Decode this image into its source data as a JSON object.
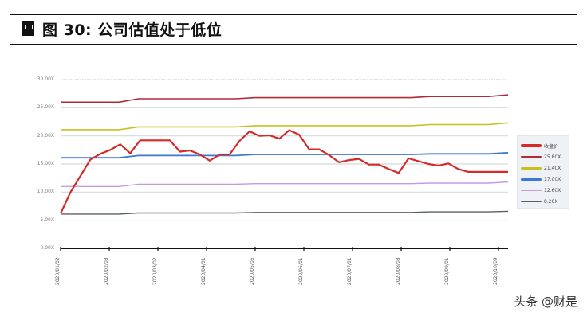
{
  "header": {
    "figure_label": "图 30:",
    "title": "公司估值处于低位"
  },
  "watermark": "头条 @财是",
  "chart_data": {
    "type": "line",
    "title": "图 30: 公司估值处于低位",
    "xlabel": "",
    "ylabel": "",
    "ylim": [
      0,
      30
    ],
    "grid": true,
    "legend_position": "right",
    "y_ticks": [
      "0.00X",
      "5.00X",
      "10.00X",
      "15.00X",
      "20.00X",
      "25.00X",
      "30.00X"
    ],
    "x_tick_labels": [
      "2020/01/02",
      "2020/02/03",
      "2020/03/02",
      "2020/04/01",
      "2020/05/06",
      "2020/06/01",
      "2020/07/01",
      "2020/08/03",
      "2020/09/01",
      "2020/10/09"
    ],
    "series": [
      {
        "name": "收盘价",
        "color": "#d42a2a",
        "width": 2.2,
        "x": [
          0,
          1,
          3,
          4,
          5,
          6,
          7,
          8,
          9,
          10,
          11,
          12,
          13,
          14,
          15,
          16,
          17,
          18,
          19,
          20,
          21,
          22,
          23,
          24,
          25,
          26,
          27,
          28,
          29,
          30,
          31,
          32,
          33,
          34,
          35,
          36,
          37,
          38,
          39,
          40,
          41,
          42,
          43,
          44,
          45
        ],
        "values": [
          6.2,
          10.0,
          15.8,
          16.8,
          17.5,
          18.5,
          16.9,
          19.2,
          19.2,
          19.2,
          19.2,
          17.2,
          17.4,
          16.7,
          15.6,
          16.7,
          16.7,
          19.1,
          20.8,
          20.0,
          20.1,
          19.5,
          21.0,
          20.2,
          17.6,
          17.6,
          16.6,
          15.3,
          15.7,
          15.9,
          14.9,
          14.9,
          14.1,
          13.4,
          16.0,
          15.5,
          15.0,
          14.7,
          15.1,
          14.1,
          13.6,
          13.6,
          13.6,
          13.6,
          13.6
        ]
      },
      {
        "name": "25.80X",
        "color": "#b02a3a",
        "width": 1.6,
        "values": [
          26.0,
          26.0,
          26.0,
          26.0,
          26.6,
          26.6,
          26.6,
          26.6,
          26.6,
          26.6,
          26.8,
          26.8,
          26.8,
          26.8,
          26.8,
          26.8,
          26.8,
          26.8,
          26.8,
          27.0,
          27.0,
          27.0,
          27.0,
          27.3
        ]
      },
      {
        "name": "21.40X",
        "color": "#c8c020",
        "width": 1.6,
        "values": [
          21.1,
          21.1,
          21.1,
          21.1,
          21.6,
          21.6,
          21.6,
          21.6,
          21.6,
          21.6,
          21.8,
          21.8,
          21.8,
          21.8,
          21.8,
          21.8,
          21.8,
          21.8,
          21.8,
          22.0,
          22.0,
          22.0,
          22.0,
          22.3
        ]
      },
      {
        "name": "17.00X",
        "color": "#3a78d4",
        "width": 1.8,
        "values": [
          16.1,
          16.1,
          16.1,
          16.1,
          16.5,
          16.5,
          16.5,
          16.5,
          16.5,
          16.5,
          16.7,
          16.7,
          16.7,
          16.7,
          16.7,
          16.7,
          16.7,
          16.7,
          16.7,
          16.8,
          16.8,
          16.8,
          16.8,
          17.0
        ]
      },
      {
        "name": "12.60X",
        "color": "#c59ae0",
        "width": 1.4,
        "values": [
          11.0,
          11.0,
          11.0,
          11.0,
          11.4,
          11.4,
          11.4,
          11.4,
          11.4,
          11.4,
          11.5,
          11.5,
          11.5,
          11.5,
          11.5,
          11.5,
          11.5,
          11.5,
          11.5,
          11.6,
          11.6,
          11.6,
          11.6,
          11.8
        ]
      },
      {
        "name": "8.20X",
        "color": "#5a6068",
        "width": 1.4,
        "values": [
          6.1,
          6.1,
          6.1,
          6.1,
          6.3,
          6.3,
          6.3,
          6.3,
          6.3,
          6.3,
          6.4,
          6.4,
          6.4,
          6.4,
          6.4,
          6.4,
          6.4,
          6.4,
          6.4,
          6.5,
          6.5,
          6.5,
          6.5,
          6.6
        ]
      }
    ]
  },
  "legend": {
    "items": [
      {
        "label": "收盘价",
        "color": "#d42a2a",
        "thick": 4
      },
      {
        "label": "25.80X",
        "color": "#b02a3a",
        "thick": 2
      },
      {
        "label": "21.40X",
        "color": "#c8c020",
        "thick": 3
      },
      {
        "label": "17.00X",
        "color": "#3a78d4",
        "thick": 3
      },
      {
        "label": "12.60X",
        "color": "#c59ae0",
        "thick": 1
      },
      {
        "label": "8.20X",
        "color": "#5a6068",
        "thick": 2
      }
    ]
  }
}
